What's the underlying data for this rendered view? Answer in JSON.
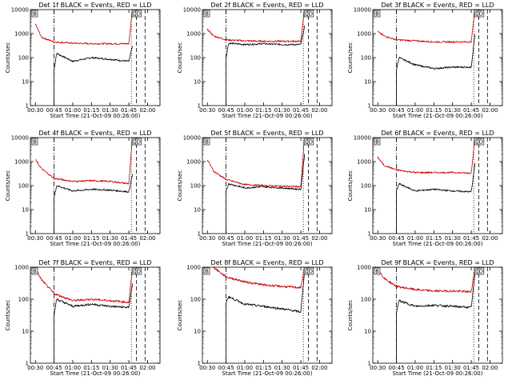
{
  "chart_data": [
    {
      "type": "line",
      "title": "Det 1f BLACK = Events, RED = LLD",
      "xlabel": "Start Time (21-Oct-09 00:26:00)",
      "ylabel": "Counts/sec",
      "x_ticks": [
        "00:30",
        "00:45",
        "01:00",
        "01:15",
        "01:30",
        "01:45",
        "02:00"
      ],
      "y_ticks": [
        "1",
        "10",
        "100",
        "1000",
        "10000"
      ],
      "y_scale": "log",
      "ylim": [
        1,
        10000
      ],
      "series": [
        {
          "color": "#000000",
          "start_time": "00:45",
          "level": 70,
          "x": [
            "00:45",
            "00:47",
            "01:00",
            "01:15",
            "01:30",
            "01:45",
            "01:48"
          ],
          "y": [
            30,
            150,
            70,
            100,
            85,
            70,
            300
          ]
        },
        {
          "color": "#cc0000",
          "start_time": "00:30",
          "level": 400,
          "x": [
            "00:30",
            "00:35",
            "00:45",
            "01:00",
            "01:15",
            "01:30",
            "01:45",
            "01:48"
          ],
          "y": [
            2500,
            700,
            450,
            400,
            380,
            380,
            380,
            12000
          ]
        }
      ],
      "vlines": [
        {
          "time": "00:45",
          "style": "dashdot"
        },
        {
          "time": "01:47",
          "style": "dotted"
        },
        {
          "time": "01:51",
          "style": "dashed"
        },
        {
          "time": "01:58",
          "style": "dashed"
        }
      ],
      "annotations": [
        "B",
        "D",
        "D"
      ]
    },
    {
      "type": "line",
      "title": "Det 2f BLACK = Events, RED = LLD",
      "xlabel": "Start Time (21-Oct-09 00:26:00)",
      "ylabel": "Counts/sec",
      "x_ticks": [
        "00:30",
        "00:45",
        "01:00",
        "01:15",
        "01:30",
        "01:45",
        "02:00"
      ],
      "y_ticks": [
        "1",
        "10",
        "100",
        "1000",
        "10000"
      ],
      "y_scale": "log",
      "ylim": [
        1,
        10000
      ],
      "series": [
        {
          "color": "#000000",
          "start_time": "00:45",
          "level": 350,
          "x": [
            "00:45",
            "00:47",
            "01:00",
            "01:15",
            "01:30",
            "01:45",
            "01:48"
          ],
          "y": [
            100,
            400,
            350,
            380,
            350,
            350,
            2000
          ]
        },
        {
          "color": "#cc0000",
          "start_time": "00:30",
          "level": 500,
          "x": [
            "00:30",
            "00:35",
            "00:45",
            "01:00",
            "01:15",
            "01:30",
            "01:45",
            "01:48"
          ],
          "y": [
            1500,
            800,
            550,
            500,
            480,
            480,
            480,
            12000
          ]
        }
      ],
      "vlines": [
        {
          "time": "00:45",
          "style": "dashdot"
        },
        {
          "time": "01:47",
          "style": "dotted"
        },
        {
          "time": "01:51",
          "style": "dashed"
        },
        {
          "time": "01:58",
          "style": "dashed"
        }
      ],
      "annotations": [
        "B",
        "D",
        "D"
      ]
    },
    {
      "type": "line",
      "title": "Det 3f BLACK = Events, RED = LLD",
      "xlabel": "Start Time (21-Oct-09 00:26:00)",
      "ylabel": "Counts/sec",
      "x_ticks": [
        "00:30",
        "00:45",
        "01:00",
        "01:15",
        "01:30",
        "01:45",
        "02:00"
      ],
      "y_ticks": [
        "1",
        "10",
        "100",
        "1000",
        "10000"
      ],
      "y_scale": "log",
      "ylim": [
        1,
        10000
      ],
      "series": [
        {
          "color": "#000000",
          "start_time": "00:45",
          "level": 45,
          "x": [
            "00:45",
            "00:47",
            "01:00",
            "01:15",
            "01:30",
            "01:45",
            "01:48"
          ],
          "y": [
            30,
            100,
            50,
            35,
            40,
            40,
            1000
          ]
        },
        {
          "color": "#cc0000",
          "start_time": "00:30",
          "level": 500,
          "x": [
            "00:30",
            "00:35",
            "00:45",
            "01:00",
            "01:15",
            "01:30",
            "01:45",
            "01:48"
          ],
          "y": [
            1200,
            800,
            550,
            500,
            450,
            450,
            450,
            12000
          ]
        }
      ],
      "vlines": [
        {
          "time": "00:45",
          "style": "dashdot"
        },
        {
          "time": "01:47",
          "style": "dotted"
        },
        {
          "time": "01:51",
          "style": "dashed"
        },
        {
          "time": "01:58",
          "style": "dashed"
        }
      ],
      "annotations": [
        "B",
        "D",
        "D"
      ]
    },
    {
      "type": "line",
      "title": "Det 4f BLACK = Events, RED = LLD",
      "xlabel": "Start Time (21-Oct-09 00:26:00)",
      "ylabel": "Counts/sec",
      "x_ticks": [
        "00:30",
        "00:45",
        "01:00",
        "01:15",
        "01:30",
        "01:45",
        "02:00"
      ],
      "y_ticks": [
        "1",
        "10",
        "100",
        "1000",
        "10000"
      ],
      "y_scale": "log",
      "ylim": [
        1,
        10000
      ],
      "series": [
        {
          "color": "#000000",
          "start_time": "00:45",
          "level": 65,
          "x": [
            "00:45",
            "00:47",
            "01:00",
            "01:15",
            "01:30",
            "01:45",
            "01:48"
          ],
          "y": [
            30,
            100,
            60,
            70,
            65,
            55,
            300
          ]
        },
        {
          "color": "#cc0000",
          "start_time": "00:30",
          "level": 150,
          "x": [
            "00:30",
            "00:35",
            "00:45",
            "01:00",
            "01:15",
            "01:30",
            "01:45",
            "01:48"
          ],
          "y": [
            1200,
            500,
            200,
            150,
            160,
            150,
            120,
            12000
          ]
        }
      ],
      "vlines": [
        {
          "time": "00:45",
          "style": "dashdot"
        },
        {
          "time": "01:47",
          "style": "dotted"
        },
        {
          "time": "01:51",
          "style": "dashed"
        },
        {
          "time": "01:58",
          "style": "dashed"
        }
      ],
      "annotations": [
        "B",
        "D",
        "D"
      ]
    },
    {
      "type": "line",
      "title": "Det 5f BLACK = Events, RED = LLD",
      "xlabel": "Start Time (21-Oct-09 00:26:00)",
      "ylabel": "Counts/sec",
      "x_ticks": [
        "00:30",
        "00:45",
        "01:00",
        "01:15",
        "01:30",
        "01:45",
        "02:00"
      ],
      "y_ticks": [
        "1",
        "10",
        "100",
        "1000",
        "10000"
      ],
      "y_scale": "log",
      "ylim": [
        1,
        10000
      ],
      "series": [
        {
          "color": "#000000",
          "start_time": "00:45",
          "level": 75,
          "x": [
            "00:45",
            "00:47",
            "01:00",
            "01:15",
            "01:30",
            "01:45",
            "01:48"
          ],
          "y": [
            60,
            120,
            80,
            90,
            80,
            70,
            2000
          ]
        },
        {
          "color": "#cc0000",
          "start_time": "00:30",
          "level": 90,
          "x": [
            "00:30",
            "00:35",
            "00:45",
            "01:00",
            "01:15",
            "01:30",
            "01:45",
            "01:48"
          ],
          "y": [
            1200,
            400,
            180,
            110,
            100,
            95,
            90,
            12000
          ]
        }
      ],
      "vlines": [
        {
          "time": "00:45",
          "style": "dashdot"
        },
        {
          "time": "01:47",
          "style": "dotted"
        },
        {
          "time": "01:51",
          "style": "dashed"
        },
        {
          "time": "01:58",
          "style": "dashed"
        }
      ],
      "annotations": [
        "B",
        "D",
        "D"
      ]
    },
    {
      "type": "line",
      "title": "Det 6f BLACK = Events, RED = LLD",
      "xlabel": "Start Time (21-Oct-09 00:26:00)",
      "ylabel": "Counts/sec",
      "x_ticks": [
        "00:30",
        "00:45",
        "01:00",
        "01:15",
        "01:30",
        "01:45",
        "02:00"
      ],
      "y_ticks": [
        "1",
        "10",
        "100",
        "1000",
        "10000"
      ],
      "y_scale": "log",
      "ylim": [
        1,
        10000
      ],
      "series": [
        {
          "color": "#000000",
          "start_time": "00:45",
          "level": 60,
          "x": [
            "00:45",
            "00:47",
            "01:00",
            "01:15",
            "01:30",
            "01:45",
            "01:48"
          ],
          "y": [
            60,
            120,
            60,
            70,
            60,
            55,
            800
          ]
        },
        {
          "color": "#cc0000",
          "start_time": "00:30",
          "level": 350,
          "x": [
            "00:30",
            "00:35",
            "00:45",
            "01:00",
            "01:15",
            "01:30",
            "01:45",
            "01:48"
          ],
          "y": [
            1500,
            700,
            450,
            350,
            350,
            350,
            330,
            12000
          ]
        }
      ],
      "vlines": [
        {
          "time": "00:45",
          "style": "dashdot"
        },
        {
          "time": "01:47",
          "style": "dotted"
        },
        {
          "time": "01:51",
          "style": "dashed"
        },
        {
          "time": "01:58",
          "style": "dashed"
        }
      ],
      "annotations": [
        "B",
        "D",
        "D"
      ]
    },
    {
      "type": "line",
      "title": "Det 7f BLACK = Events, RED = LLD",
      "xlabel": "Start Time (21-Oct-09 00:26:00)",
      "ylabel": "Counts/sec",
      "x_ticks": [
        "00:30",
        "00:45",
        "01:00",
        "01:15",
        "01:30",
        "01:45",
        "02:00"
      ],
      "y_ticks": [
        "1",
        "10",
        "100",
        "1000"
      ],
      "y_scale": "log",
      "ylim": [
        1,
        1000
      ],
      "series": [
        {
          "color": "#000000",
          "start_time": "00:45",
          "level": 55,
          "x": [
            "00:45",
            "00:47",
            "01:00",
            "01:15",
            "01:30",
            "01:45",
            "01:48"
          ],
          "y": [
            30,
            100,
            60,
            70,
            60,
            55,
            300
          ]
        },
        {
          "color": "#cc0000",
          "start_time": "00:30",
          "level": 90,
          "x": [
            "00:30",
            "00:35",
            "00:45",
            "01:00",
            "01:15",
            "01:30",
            "01:45",
            "01:48"
          ],
          "y": [
            900,
            400,
            150,
            90,
            100,
            90,
            80,
            1000
          ]
        }
      ],
      "vlines": [
        {
          "time": "00:45",
          "style": "dashdot"
        },
        {
          "time": "01:47",
          "style": "dotted"
        },
        {
          "time": "01:51",
          "style": "dashed"
        },
        {
          "time": "01:58",
          "style": "dashed"
        }
      ],
      "annotations": [
        "B",
        "D",
        "D"
      ]
    },
    {
      "type": "line",
      "title": "Det 8f BLACK = Events, RED = LLD",
      "xlabel": "Start Time (21-Oct-09 00:26:00)",
      "ylabel": "Counts/sec",
      "x_ticks": [
        "00:30",
        "00:45",
        "01:00",
        "01:15",
        "01:30",
        "01:45",
        "02:00"
      ],
      "y_ticks": [
        "1",
        "10",
        "100",
        "1000"
      ],
      "y_scale": "log",
      "ylim": [
        1,
        1000
      ],
      "series": [
        {
          "color": "#000000",
          "start_time": "00:45",
          "level": 55,
          "x": [
            "00:45",
            "00:47",
            "01:00",
            "01:15",
            "01:30",
            "01:45",
            "01:48"
          ],
          "y": [
            80,
            120,
            70,
            60,
            50,
            40,
            800
          ]
        },
        {
          "color": "#cc0000",
          "start_time": "00:35",
          "level": 250,
          "x": [
            "00:35",
            "00:40",
            "00:45",
            "01:00",
            "01:15",
            "01:30",
            "01:45",
            "01:48"
          ],
          "y": [
            1000,
            700,
            500,
            350,
            280,
            250,
            230,
            1000
          ]
        }
      ],
      "vlines": [
        {
          "time": "00:45",
          "style": "dashdot"
        },
        {
          "time": "01:47",
          "style": "dotted"
        },
        {
          "time": "01:51",
          "style": "dashed"
        },
        {
          "time": "01:58",
          "style": "dashed"
        }
      ],
      "annotations": [
        "B",
        "D",
        "D"
      ]
    },
    {
      "type": "line",
      "title": "Det 9f BLACK = Events, RED = LLD",
      "xlabel": "Start Time (21-Oct-09 00:26:00)",
      "ylabel": "Counts/sec",
      "x_ticks": [
        "00:30",
        "00:45",
        "01:00",
        "01:15",
        "01:30",
        "01:45",
        "02:00"
      ],
      "y_ticks": [
        "1",
        "10",
        "100",
        "1000"
      ],
      "y_scale": "log",
      "ylim": [
        1,
        1000
      ],
      "series": [
        {
          "color": "#000000",
          "start_time": "00:45",
          "level": 55,
          "x": [
            "00:45",
            "00:47",
            "01:00",
            "01:15",
            "01:30",
            "01:45",
            "01:48"
          ],
          "y": [
            40,
            90,
            60,
            65,
            60,
            55,
            600
          ]
        },
        {
          "color": "#cc0000",
          "start_time": "00:30",
          "level": 180,
          "x": [
            "00:30",
            "00:35",
            "00:45",
            "01:00",
            "01:15",
            "01:30",
            "01:45",
            "01:48"
          ],
          "y": [
            900,
            450,
            250,
            200,
            180,
            180,
            170,
            1000
          ]
        }
      ],
      "vlines": [
        {
          "time": "00:45",
          "style": "dashdot"
        },
        {
          "time": "01:47",
          "style": "dotted"
        },
        {
          "time": "01:51",
          "style": "dashed"
        },
        {
          "time": "01:58",
          "style": "dashed"
        }
      ],
      "annotations": [
        "B",
        "D",
        "D"
      ]
    }
  ]
}
